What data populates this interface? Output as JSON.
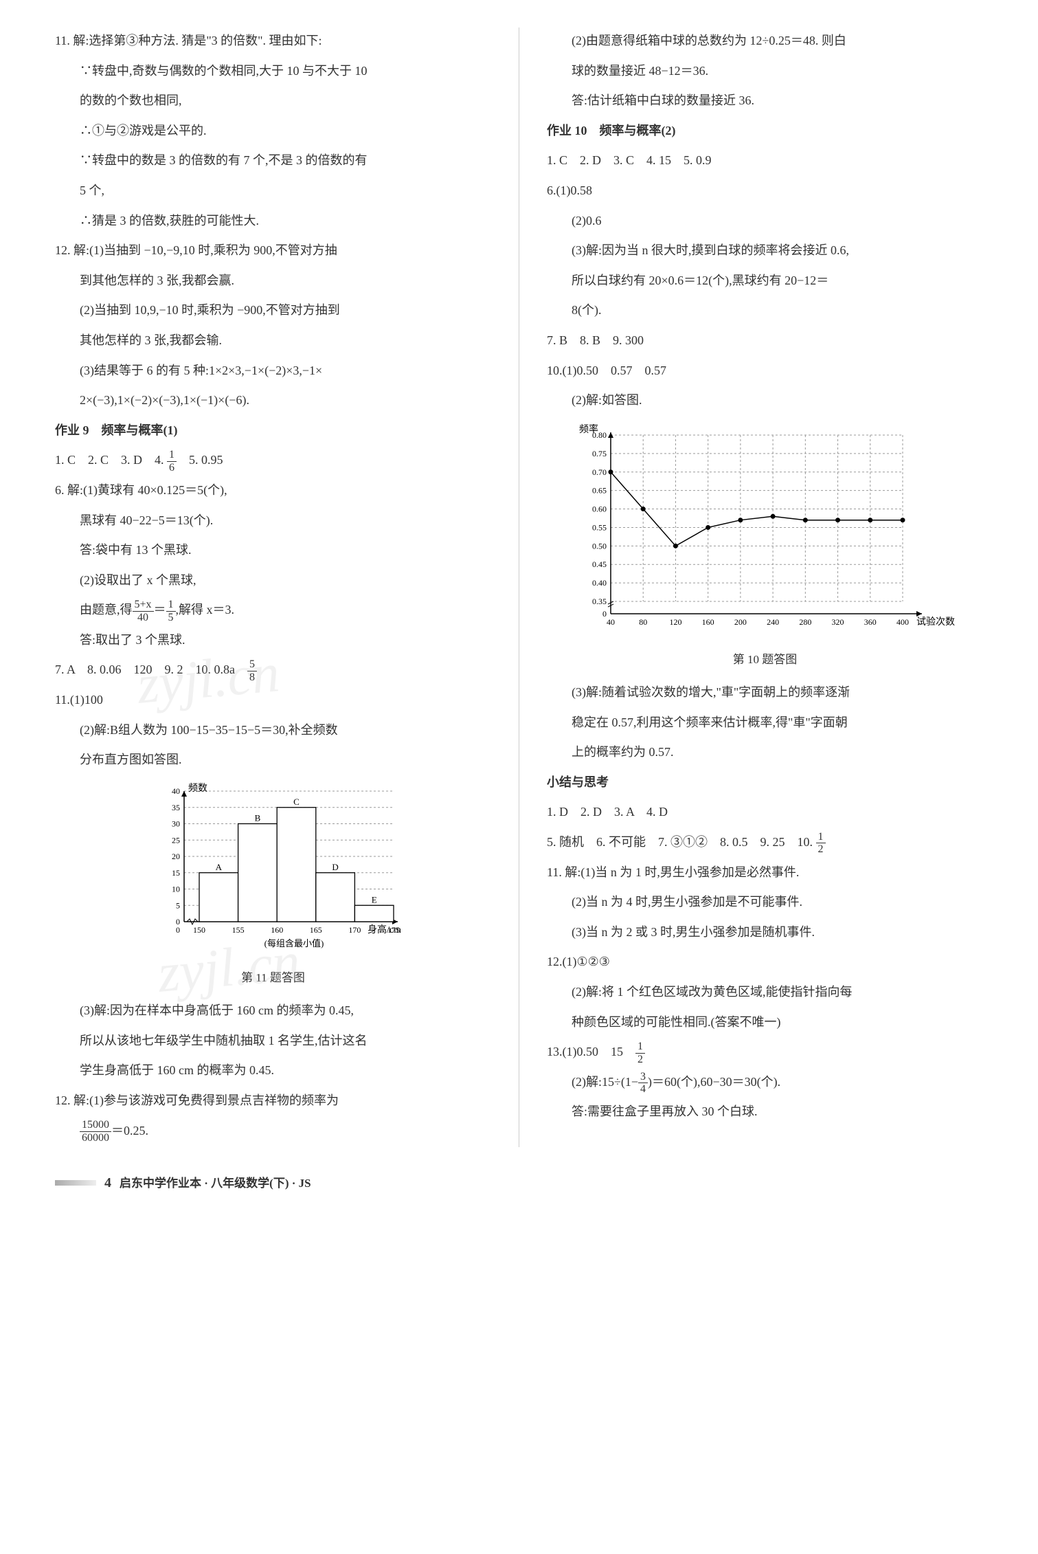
{
  "left": {
    "q11": {
      "l1": "11. 解:选择第③种方法. 猜是\"3 的倍数\". 理由如下:",
      "l2": "∵转盘中,奇数与偶数的个数相同,大于 10 与不大于 10",
      "l3": "的数的个数也相同,",
      "l4": "∴①与②游戏是公平的.",
      "l5": "∵转盘中的数是 3 的倍数的有 7 个,不是 3 的倍数的有",
      "l6": "5 个,",
      "l7": "∴猜是 3 的倍数,获胜的可能性大."
    },
    "q12": {
      "l1": "12. 解:(1)当抽到 −10,−9,10 时,乘积为 900,不管对方抽",
      "l2": "到其他怎样的 3 张,我都会赢.",
      "l3": "(2)当抽到 10,9,−10 时,乘积为 −900,不管对方抽到",
      "l4": "其他怎样的 3 张,我都会输.",
      "l5": "(3)结果等于 6 的有 5 种:1×2×3,−1×(−2)×3,−1×",
      "l6": "2×(−3),1×(−2)×(−3),1×(−1)×(−6)."
    },
    "hw9": {
      "title": "作业 9　频率与概率(1)",
      "a1": "1. C　2. C　3. D　4. ",
      "a1_frac_num": "1",
      "a1_frac_den": "6",
      "a1_tail": "　5. 0.95",
      "q6_1": "6. 解:(1)黄球有 40×0.125＝5(个),",
      "q6_2": "黑球有 40−22−5＝13(个).",
      "q6_3": "答:袋中有 13 个黑球.",
      "q6_4": "(2)设取出了 x 个黑球,",
      "q6_5a": "由题意,得",
      "q6_5_frac1_num": "5+x",
      "q6_5_frac1_den": "40",
      "q6_5_mid": "＝",
      "q6_5_frac2_num": "1",
      "q6_5_frac2_den": "5",
      "q6_5b": ",解得 x＝3.",
      "q6_6": "答:取出了 3 个黑球.",
      "a7": "7. A　8. 0.06　120　9. 2　10. 0.8a　",
      "a7_frac_num": "5",
      "a7_frac_den": "8",
      "q11_1": "11.(1)100",
      "q11_2": "(2)解:B组人数为 100−15−35−15−5＝30,补全频数",
      "q11_3": "分布直方图如答图.",
      "chart_title": "第 11 题答图",
      "chart": {
        "ylabel": "频数",
        "xlabel": "身高/cm",
        "xnote": "(每组含最小值)",
        "yticks": [
          0,
          5,
          10,
          15,
          20,
          25,
          30,
          35,
          40
        ],
        "xticks": [
          150,
          155,
          160,
          165,
          170,
          175
        ],
        "bars": [
          {
            "label": "A",
            "x": 150,
            "h": 15
          },
          {
            "label": "B",
            "x": 155,
            "h": 30
          },
          {
            "label": "C",
            "x": 160,
            "h": 35
          },
          {
            "label": "D",
            "x": 165,
            "h": 15
          },
          {
            "label": "E",
            "x": 170,
            "h": 5
          }
        ],
        "bar_fill": "#ffffff",
        "bar_stroke": "#000000",
        "axis_color": "#000000",
        "grid_dash": "3 3"
      },
      "q11_4": "(3)解:因为在样本中身高低于 160 cm 的频率为 0.45,",
      "q11_5": "所以从该地七年级学生中随机抽取 1 名学生,估计这名",
      "q11_6": "学生身高低于 160 cm 的概率为 0.45.",
      "q12_1": "12. 解:(1)参与该游戏可免费得到景点吉祥物的频率为",
      "q12_frac_num": "15000",
      "q12_frac_den": "60000",
      "q12_2": "＝0.25."
    }
  },
  "right": {
    "cont": {
      "l1": "(2)由题意得纸箱中球的总数约为 12÷0.25＝48. 则白",
      "l2": "球的数量接近 48−12＝36.",
      "l3": "答:估计纸箱中白球的数量接近 36."
    },
    "hw10": {
      "title": "作业 10　频率与概率(2)",
      "a1": "1. C　2. D　3. C　4. 15　5. 0.9",
      "q6_1": "6.(1)0.58",
      "q6_2": "(2)0.6",
      "q6_3": "(3)解:因为当 n 很大时,摸到白球的频率将会接近 0.6,",
      "q6_4": "所以白球约有 20×0.6＝12(个),黑球约有 20−12＝",
      "q6_5": "8(个).",
      "a7": "7. B　8. B　9. 300",
      "q10_1": "10.(1)0.50　0.57　0.57",
      "q10_2": "(2)解:如答图.",
      "chart_title": "第 10 题答图",
      "chart": {
        "ylabel": "频率",
        "xlabel": "试验次数",
        "yticks": [
          0,
          0.35,
          0.4,
          0.45,
          0.5,
          0.55,
          0.6,
          0.65,
          0.7,
          0.75,
          0.8
        ],
        "xticks": [
          40,
          80,
          120,
          160,
          200,
          240,
          280,
          320,
          360,
          400
        ],
        "points": [
          {
            "x": 40,
            "y": 0.7
          },
          {
            "x": 80,
            "y": 0.6
          },
          {
            "x": 120,
            "y": 0.5
          },
          {
            "x": 160,
            "y": 0.55
          },
          {
            "x": 200,
            "y": 0.57
          },
          {
            "x": 240,
            "y": 0.58
          },
          {
            "x": 280,
            "y": 0.57
          },
          {
            "x": 320,
            "y": 0.57
          },
          {
            "x": 360,
            "y": 0.57
          },
          {
            "x": 400,
            "y": 0.57
          }
        ],
        "line_color": "#000000",
        "point_fill": "#000000",
        "axis_color": "#000000",
        "grid_dash": "3 3"
      },
      "q10_3": "(3)解:随着试验次数的增大,\"車\"字面朝上的频率逐渐",
      "q10_4": "稳定在 0.57,利用这个频率来估计概率,得\"車\"字面朝",
      "q10_5": "上的概率约为 0.57."
    },
    "summary": {
      "title": "小结与思考",
      "a1": "1. D　2. D　3. A　4. D",
      "a5": "5. 随机　6. 不可能　7. ③①②　8. 0.5　9. 25　10. ",
      "a5_frac_num": "1",
      "a5_frac_den": "2",
      "q11_1": "11. 解:(1)当 n 为 1 时,男生小强参加是必然事件.",
      "q11_2": "(2)当 n 为 4 时,男生小强参加是不可能事件.",
      "q11_3": "(3)当 n 为 2 或 3 时,男生小强参加是随机事件.",
      "q12_1": "12.(1)①②③",
      "q12_2": "(2)解:将 1 个红色区域改为黄色区域,能使指针指向每",
      "q12_3": "种颜色区域的可能性相同.(答案不唯一)",
      "q13_1a": "13.(1)0.50　15　",
      "q13_1_frac_num": "1",
      "q13_1_frac_den": "2",
      "q13_2a": "(2)解:15÷",
      "q13_2_lp": "(1−",
      "q13_2_frac_num": "3",
      "q13_2_frac_den": "4",
      "q13_2_rp": ")",
      "q13_2b": "＝60(个),60−30＝30(个).",
      "q13_3": "答:需要往盒子里再放入 30 个白球."
    }
  },
  "footer": {
    "page": "4",
    "title": "启东中学作业本 · 八年级数学(下) · JS"
  },
  "watermark": "zyjl.cn"
}
